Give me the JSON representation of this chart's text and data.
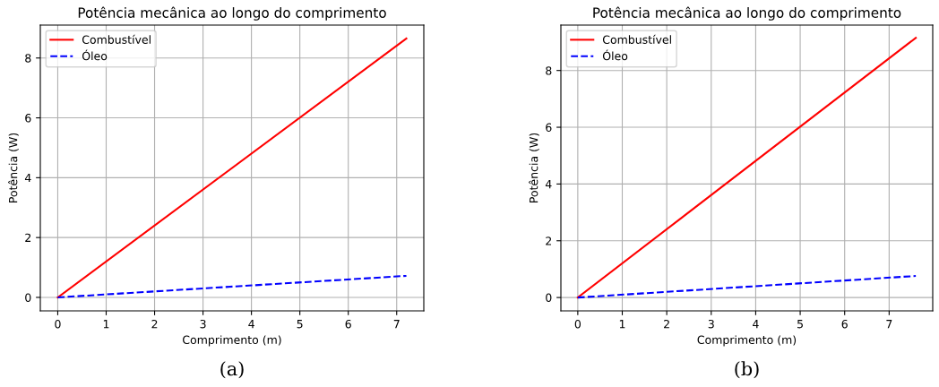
{
  "chart_data": [
    {
      "type": "line",
      "title": "Potência mecânica ao longo do comprimento",
      "xlabel": "Comprimento (m)",
      "ylabel": "Potência (W)",
      "x": [
        0,
        7.2
      ],
      "series": [
        {
          "name": "Combustível",
          "color": "#ff0000",
          "values": [
            0,
            8.65
          ],
          "line_style": "solid"
        },
        {
          "name": "Óleo",
          "color": "#0000ff",
          "values": [
            0,
            0.72
          ],
          "line_style": "dashed"
        }
      ],
      "xlim": [
        -0.36,
        7.56
      ],
      "ylim": [
        -0.45,
        9.1
      ],
      "xticks": [
        0,
        1,
        2,
        3,
        4,
        5,
        6,
        7
      ],
      "yticks": [
        0,
        2,
        4,
        6,
        8
      ],
      "grid": true,
      "legend": "top left",
      "annotations": [
        "(a)"
      ]
    },
    {
      "type": "line",
      "title": "Potência mecânica ao longo do comprimento",
      "xlabel": "Comprimento (m)",
      "ylabel": "Potência (W)",
      "x": [
        0,
        7.6
      ],
      "series": [
        {
          "name": "Combustível",
          "color": "#ff0000",
          "values": [
            0,
            9.15
          ],
          "line_style": "solid"
        },
        {
          "name": "Óleo",
          "color": "#0000ff",
          "values": [
            0,
            0.76
          ],
          "line_style": "dashed"
        }
      ],
      "xlim": [
        -0.38,
        7.98
      ],
      "ylim": [
        -0.47,
        9.6
      ],
      "xticks": [
        0,
        1,
        2,
        3,
        4,
        5,
        6,
        7
      ],
      "yticks": [
        0,
        2,
        4,
        6,
        8
      ],
      "grid": true,
      "legend": "top left",
      "annotations": [
        "(b)"
      ]
    }
  ]
}
